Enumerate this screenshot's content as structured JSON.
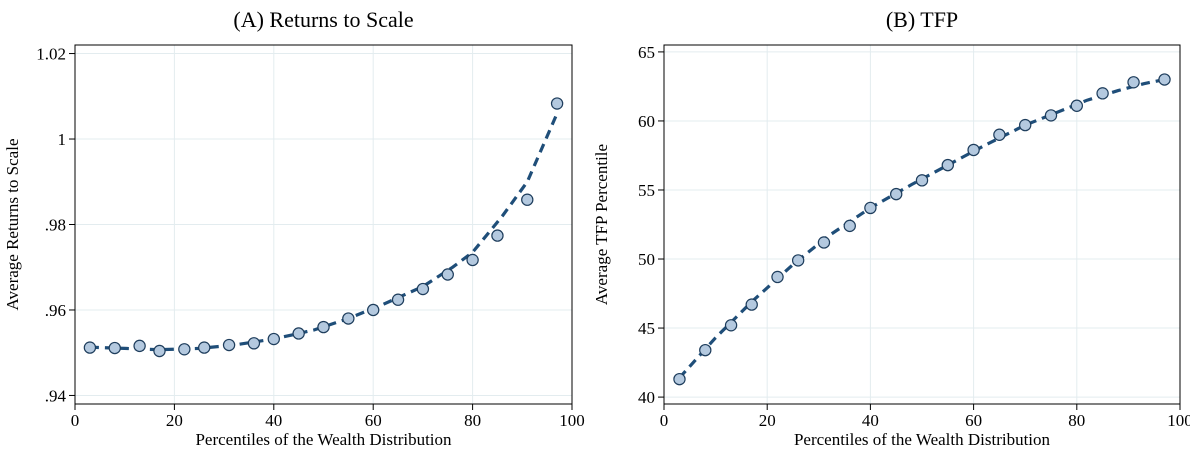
{
  "chart_data": [
    {
      "type": "scatter",
      "title": "(A) Returns to Scale",
      "xlabel": "Percentiles of the Wealth Distribution",
      "ylabel": "Average Returns to Scale",
      "xlim": [
        0,
        100
      ],
      "ylim": [
        0.938,
        1.022
      ],
      "x_ticks": [
        0,
        20,
        40,
        60,
        80,
        100
      ],
      "x_tick_labels": [
        "0",
        "20",
        "40",
        "60",
        "80",
        "100"
      ],
      "y_ticks": [
        0.94,
        0.96,
        0.98,
        1.0,
        1.02
      ],
      "y_tick_labels": [
        ".94",
        ".96",
        ".98",
        "1",
        "1.02"
      ],
      "grid": true,
      "marker_color": "#b4c9df",
      "line_color": "#1f4e79",
      "series": [
        {
          "kind": "points",
          "x": [
            3,
            8,
            13,
            17,
            22,
            26,
            31,
            36,
            40,
            45,
            50,
            55,
            60,
            65,
            70,
            75,
            80,
            85,
            91,
            97
          ],
          "y": [
            0.9512,
            0.9511,
            0.9516,
            0.9504,
            0.9508,
            0.9512,
            0.9518,
            0.9522,
            0.9532,
            0.9545,
            0.956,
            0.958,
            0.96,
            0.9624,
            0.9649,
            0.9683,
            0.9717,
            0.9774,
            0.9858,
            1.0083
          ]
        },
        {
          "kind": "fitted-line",
          "x": [
            3,
            10,
            17,
            25,
            32,
            40,
            48,
            55,
            62,
            70,
            76,
            80,
            86,
            91,
            97
          ],
          "y": [
            0.9513,
            0.951,
            0.9507,
            0.951,
            0.9518,
            0.9532,
            0.9553,
            0.958,
            0.9613,
            0.9655,
            0.97,
            0.9735,
            0.982,
            0.99,
            1.006
          ]
        }
      ]
    },
    {
      "type": "scatter",
      "title": "(B) TFP",
      "xlabel": "Percentiles of the Wealth Distribution",
      "ylabel": "Average TFP Percentile",
      "xlim": [
        0,
        100
      ],
      "ylim": [
        39.5,
        65.5
      ],
      "x_ticks": [
        0,
        20,
        40,
        60,
        80,
        100
      ],
      "x_tick_labels": [
        "0",
        "20",
        "40",
        "60",
        "80",
        "100"
      ],
      "y_ticks": [
        40,
        45,
        50,
        55,
        60,
        65
      ],
      "y_tick_labels": [
        "40",
        "45",
        "50",
        "55",
        "60",
        "65"
      ],
      "grid": true,
      "marker_color": "#b4c9df",
      "line_color": "#1f4e79",
      "series": [
        {
          "kind": "points",
          "x": [
            3,
            8,
            13,
            17,
            22,
            26,
            31,
            36,
            40,
            45,
            50,
            55,
            60,
            65,
            70,
            75,
            80,
            85,
            91,
            97
          ],
          "y": [
            41.3,
            43.4,
            45.2,
            46.7,
            48.7,
            49.9,
            51.2,
            52.4,
            53.7,
            54.7,
            55.7,
            56.8,
            57.9,
            59.0,
            59.7,
            60.4,
            61.1,
            62.0,
            62.8,
            63.0
          ]
        },
        {
          "kind": "fitted-line",
          "x": [
            3,
            10,
            17,
            25,
            32,
            40,
            48,
            55,
            62,
            70,
            76,
            82,
            88,
            93,
            97
          ],
          "y": [
            41.4,
            44.3,
            46.9,
            49.6,
            51.7,
            53.7,
            55.4,
            56.8,
            58.2,
            59.7,
            60.6,
            61.5,
            62.2,
            62.7,
            63.0
          ]
        }
      ]
    }
  ]
}
